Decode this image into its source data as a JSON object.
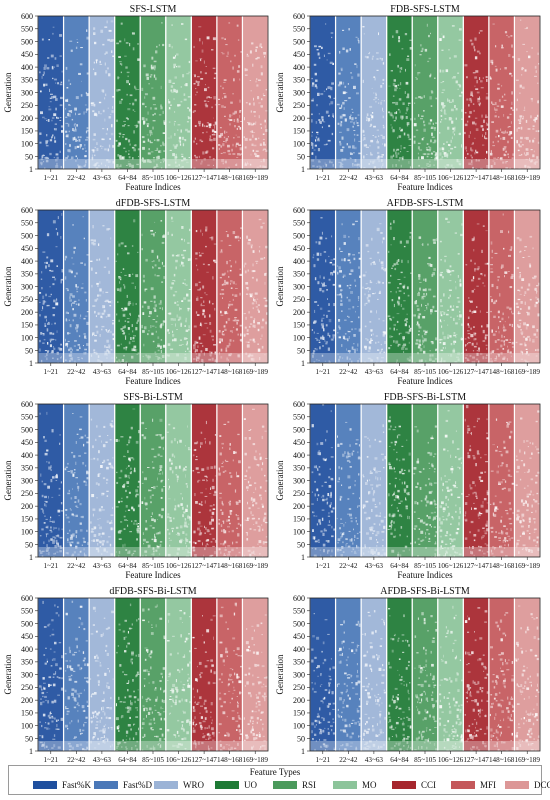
{
  "chart_data": {
    "type": "heatmap",
    "panels": [
      {
        "title": "SFS-LSTM",
        "xlabel": "Feature Indices",
        "ylabel": "Generation"
      },
      {
        "title": "FDB-SFS-LSTM",
        "xlabel": "Feature Indices",
        "ylabel": "Generation"
      },
      {
        "title": "dFDB-SFS-LSTM",
        "xlabel": "Feature Indices",
        "ylabel": "Generation"
      },
      {
        "title": "AFDB-SFS-LSTM",
        "xlabel": "Feature Indices",
        "ylabel": "Generation"
      },
      {
        "title": "SFS-Bi-LSTM",
        "xlabel": "Feature Indices",
        "ylabel": "Generation"
      },
      {
        "title": "FDB-SFS-Bi-LSTM",
        "xlabel": "Feature Indices",
        "ylabel": "Generation"
      },
      {
        "title": "dFDB-SFS-Bi-LSTM",
        "xlabel": "Feature Indices",
        "ylabel": "Generation"
      },
      {
        "title": "AFDB-SFS-Bi-LSTM",
        "xlabel": "Feature Indices",
        "ylabel": "Generation"
      }
    ],
    "x_tick_labels": [
      "1~21",
      "22~42",
      "43~63",
      "64~84",
      "85~105",
      "106~126",
      "127~147",
      "148~168",
      "169~189"
    ],
    "y_ticks": [
      1,
      50,
      100,
      150,
      200,
      250,
      300,
      350,
      400,
      450,
      500,
      550,
      600
    ],
    "ylim": [
      1,
      600
    ],
    "xlim": [
      1,
      189
    ],
    "feature_types": [
      {
        "name": "Fast%K",
        "range": "1~21",
        "color": "#1f4f9e"
      },
      {
        "name": "Fast%D",
        "range": "22~42",
        "color": "#4a78b8"
      },
      {
        "name": "WRO",
        "range": "43~63",
        "color": "#9bb3d6"
      },
      {
        "name": "UO",
        "range": "64~84",
        "color": "#1e7a35"
      },
      {
        "name": "RSI",
        "range": "85~105",
        "color": "#4b9a5c"
      },
      {
        "name": "MO",
        "range": "106~126",
        "color": "#8cc49a"
      },
      {
        "name": "CCI",
        "range": "127~147",
        "color": "#a6262d"
      },
      {
        "name": "MFI",
        "range": "148~168",
        "color": "#c4585b"
      },
      {
        "name": "DCC",
        "range": "169~189",
        "color": "#dc9797"
      }
    ],
    "legend": {
      "title": "Feature Types",
      "placement": "bottom"
    }
  }
}
